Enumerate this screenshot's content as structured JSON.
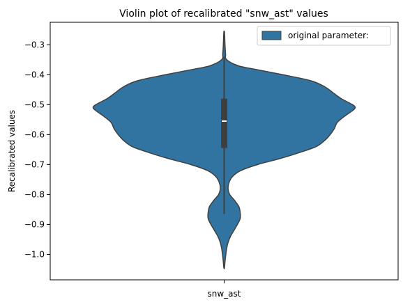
{
  "chart_data": {
    "type": "violin",
    "title": "Violin plot of recalibrated \"snw_ast\" values",
    "xlabel": "",
    "ylabel": "Recalibrated values",
    "categories": [
      "snw_ast"
    ],
    "ylim": [
      -1.085,
      -0.225
    ],
    "yticks": [
      -0.3,
      -0.4,
      -0.5,
      -0.6,
      -0.7,
      -0.8,
      -0.9,
      -1.0
    ],
    "ytick_labels": [
      "−0.3",
      "−0.4",
      "−0.5",
      "−0.6",
      "−0.7",
      "−0.8",
      "−0.9",
      "−1.0"
    ],
    "legend": {
      "label": "original parameter:",
      "placement": "top-right"
    },
    "series": [
      {
        "name": "original parameter:",
        "color": "#3274a1",
        "edge_color": "#3f3f3f",
        "density_profile": [
          [
            -0.255,
            0.002
          ],
          [
            -0.275,
            0.004
          ],
          [
            -0.3,
            0.006
          ],
          [
            -0.33,
            0.01
          ],
          [
            -0.35,
            0.018
          ],
          [
            -0.37,
            0.1
          ],
          [
            -0.38,
            0.2
          ],
          [
            -0.4,
            0.42
          ],
          [
            -0.42,
            0.62
          ],
          [
            -0.44,
            0.72
          ],
          [
            -0.46,
            0.78
          ],
          [
            -0.48,
            0.84
          ],
          [
            -0.5,
            0.92
          ],
          [
            -0.51,
            0.94
          ],
          [
            -0.52,
            0.92
          ],
          [
            -0.54,
            0.86
          ],
          [
            -0.56,
            0.81
          ],
          [
            -0.58,
            0.79
          ],
          [
            -0.6,
            0.76
          ],
          [
            -0.62,
            0.72
          ],
          [
            -0.64,
            0.66
          ],
          [
            -0.66,
            0.54
          ],
          [
            -0.68,
            0.4
          ],
          [
            -0.7,
            0.24
          ],
          [
            -0.72,
            0.12
          ],
          [
            -0.74,
            0.06
          ],
          [
            -0.76,
            0.035
          ],
          [
            -0.78,
            0.028
          ],
          [
            -0.8,
            0.04
          ],
          [
            -0.82,
            0.075
          ],
          [
            -0.84,
            0.105
          ],
          [
            -0.86,
            0.115
          ],
          [
            -0.88,
            0.115
          ],
          [
            -0.9,
            0.095
          ],
          [
            -0.92,
            0.07
          ],
          [
            -0.94,
            0.045
          ],
          [
            -0.96,
            0.028
          ],
          [
            -0.98,
            0.018
          ],
          [
            -1.0,
            0.012
          ],
          [
            -1.02,
            0.007
          ],
          [
            -1.045,
            0.002
          ]
        ],
        "box": {
          "q1": -0.645,
          "median": -0.555,
          "q3": -0.48,
          "whisker_low": -0.865,
          "whisker_high": -0.34
        }
      }
    ]
  }
}
